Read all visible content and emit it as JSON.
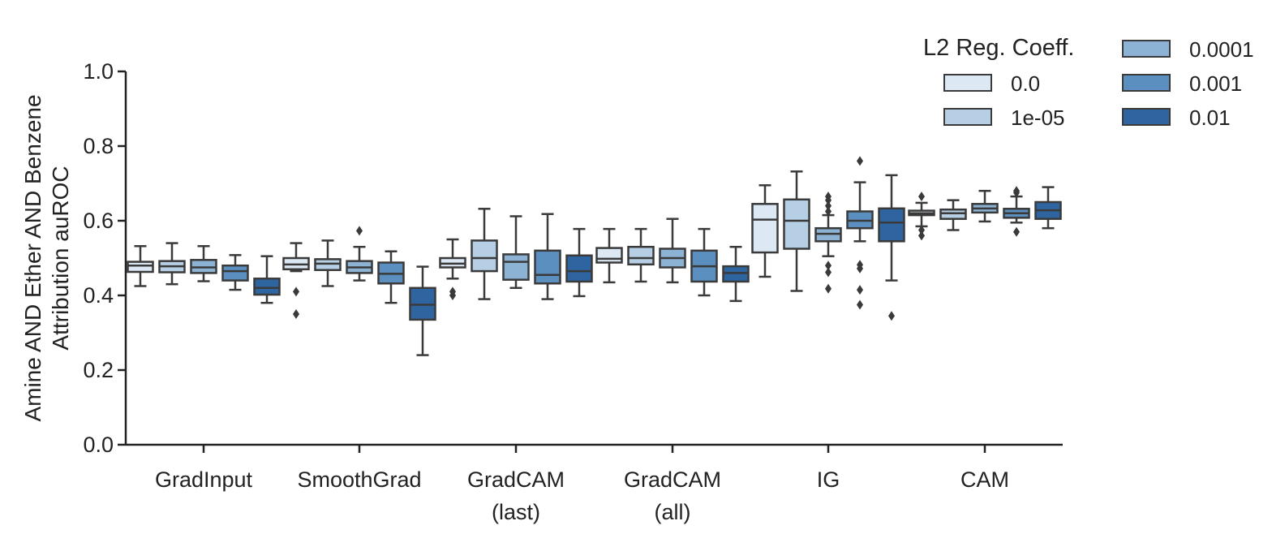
{
  "chart_data": {
    "type": "box",
    "ylabel_line1": "Amine AND Ether AND Benzene",
    "ylabel_line2": "Attribution auROC",
    "ylim": [
      0.0,
      1.0
    ],
    "yticks": [
      "0.0",
      "0.2",
      "0.4",
      "0.6",
      "0.8",
      "1.0"
    ],
    "categories": [
      {
        "line1": "GradInput",
        "line2": ""
      },
      {
        "line1": "SmoothGrad",
        "line2": ""
      },
      {
        "line1": "GradCAM",
        "line2": "(last)"
      },
      {
        "line1": "GradCAM",
        "line2": "(all)"
      },
      {
        "line1": "IG",
        "line2": ""
      },
      {
        "line1": "CAM",
        "line2": ""
      }
    ],
    "legend": {
      "title": "L2 Reg. Coeff.",
      "placement": "top-right"
    },
    "series": [
      {
        "name": "0.0",
        "color": "#dce9f4"
      },
      {
        "name": "1e-05",
        "color": "#b6cfe4"
      },
      {
        "name": "0.0001",
        "color": "#8cb3d4"
      },
      {
        "name": "0.001",
        "color": "#5b8fc0"
      },
      {
        "name": "0.01",
        "color": "#2e65a1"
      }
    ],
    "boxes": [
      [
        {
          "whislo": 0.425,
          "q1": 0.463,
          "med": 0.48,
          "q3": 0.49,
          "whishi": 0.532,
          "fliers": []
        },
        {
          "whislo": 0.43,
          "q1": 0.462,
          "med": 0.478,
          "q3": 0.492,
          "whishi": 0.54,
          "fliers": []
        },
        {
          "whislo": 0.438,
          "q1": 0.46,
          "med": 0.475,
          "q3": 0.495,
          "whishi": 0.532,
          "fliers": []
        },
        {
          "whislo": 0.415,
          "q1": 0.44,
          "med": 0.465,
          "q3": 0.48,
          "whishi": 0.508,
          "fliers": []
        },
        {
          "whislo": 0.38,
          "q1": 0.402,
          "med": 0.42,
          "q3": 0.445,
          "whishi": 0.505,
          "fliers": []
        }
      ],
      [
        {
          "whislo": 0.465,
          "q1": 0.47,
          "med": 0.483,
          "q3": 0.5,
          "whishi": 0.54,
          "fliers": [
            0.41,
            0.35
          ]
        },
        {
          "whislo": 0.425,
          "q1": 0.468,
          "med": 0.485,
          "q3": 0.497,
          "whishi": 0.547,
          "fliers": []
        },
        {
          "whislo": 0.44,
          "q1": 0.46,
          "med": 0.475,
          "q3": 0.492,
          "whishi": 0.53,
          "fliers": [
            0.573
          ]
        },
        {
          "whislo": 0.38,
          "q1": 0.432,
          "med": 0.458,
          "q3": 0.488,
          "whishi": 0.518,
          "fliers": []
        },
        {
          "whislo": 0.24,
          "q1": 0.335,
          "med": 0.375,
          "q3": 0.42,
          "whishi": 0.477,
          "fliers": []
        }
      ],
      [
        {
          "whislo": 0.445,
          "q1": 0.475,
          "med": 0.485,
          "q3": 0.5,
          "whishi": 0.55,
          "fliers": [
            0.41,
            0.4
          ]
        },
        {
          "whislo": 0.39,
          "q1": 0.465,
          "med": 0.5,
          "q3": 0.547,
          "whishi": 0.632,
          "fliers": []
        },
        {
          "whislo": 0.42,
          "q1": 0.442,
          "med": 0.49,
          "q3": 0.51,
          "whishi": 0.612,
          "fliers": []
        },
        {
          "whislo": 0.39,
          "q1": 0.432,
          "med": 0.455,
          "q3": 0.52,
          "whishi": 0.618,
          "fliers": []
        },
        {
          "whislo": 0.398,
          "q1": 0.437,
          "med": 0.465,
          "q3": 0.507,
          "whishi": 0.578,
          "fliers": []
        }
      ],
      [
        {
          "whislo": 0.435,
          "q1": 0.488,
          "med": 0.498,
          "q3": 0.527,
          "whishi": 0.578,
          "fliers": []
        },
        {
          "whislo": 0.437,
          "q1": 0.483,
          "med": 0.5,
          "q3": 0.53,
          "whishi": 0.578,
          "fliers": []
        },
        {
          "whislo": 0.435,
          "q1": 0.475,
          "med": 0.5,
          "q3": 0.525,
          "whishi": 0.605,
          "fliers": []
        },
        {
          "whislo": 0.4,
          "q1": 0.437,
          "med": 0.478,
          "q3": 0.52,
          "whishi": 0.578,
          "fliers": []
        },
        {
          "whislo": 0.385,
          "q1": 0.437,
          "med": 0.46,
          "q3": 0.478,
          "whishi": 0.53,
          "fliers": []
        }
      ],
      [
        {
          "whislo": 0.45,
          "q1": 0.515,
          "med": 0.603,
          "q3": 0.645,
          "whishi": 0.695,
          "fliers": []
        },
        {
          "whislo": 0.412,
          "q1": 0.525,
          "med": 0.6,
          "q3": 0.657,
          "whishi": 0.732,
          "fliers": []
        },
        {
          "whislo": 0.505,
          "q1": 0.545,
          "med": 0.565,
          "q3": 0.58,
          "whishi": 0.615,
          "fliers": [
            0.665,
            0.655,
            0.64,
            0.625,
            0.48,
            0.462,
            0.418
          ]
        },
        {
          "whislo": 0.545,
          "q1": 0.58,
          "med": 0.6,
          "q3": 0.625,
          "whishi": 0.703,
          "fliers": [
            0.76,
            0.482,
            0.472,
            0.415,
            0.375
          ]
        },
        {
          "whislo": 0.44,
          "q1": 0.545,
          "med": 0.595,
          "q3": 0.633,
          "whishi": 0.722,
          "fliers": [
            0.345
          ]
        }
      ],
      [
        {
          "whislo": 0.585,
          "q1": 0.615,
          "med": 0.62,
          "q3": 0.627,
          "whishi": 0.648,
          "fliers": [
            0.665,
            0.575,
            0.56
          ]
        },
        {
          "whislo": 0.575,
          "q1": 0.605,
          "med": 0.62,
          "q3": 0.63,
          "whishi": 0.655,
          "fliers": []
        },
        {
          "whislo": 0.598,
          "q1": 0.622,
          "med": 0.633,
          "q3": 0.645,
          "whishi": 0.68,
          "fliers": []
        },
        {
          "whislo": 0.595,
          "q1": 0.608,
          "med": 0.62,
          "q3": 0.632,
          "whishi": 0.665,
          "fliers": [
            0.68,
            0.675,
            0.57
          ]
        },
        {
          "whislo": 0.58,
          "q1": 0.605,
          "med": 0.628,
          "q3": 0.65,
          "whishi": 0.69,
          "fliers": []
        }
      ]
    ]
  }
}
